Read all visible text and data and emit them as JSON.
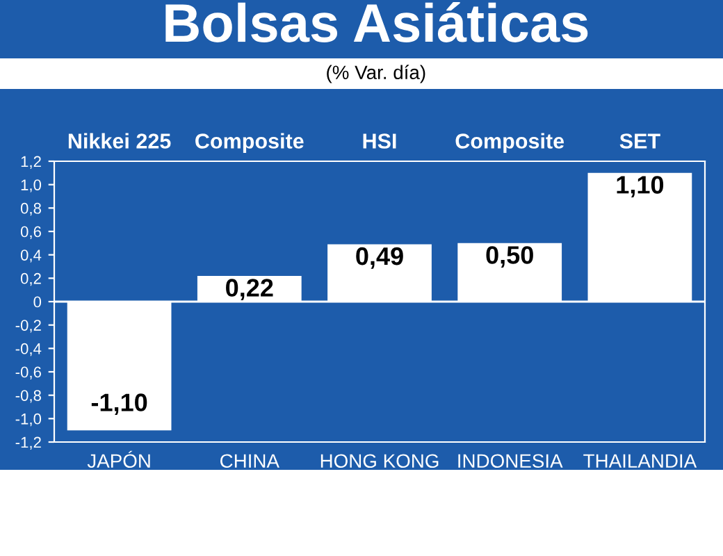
{
  "chart_data": {
    "type": "bar",
    "title": "Bolsas Asiáticas",
    "subtitle": "(% Var. día)",
    "categories": [
      "JAPÓN",
      "CHINA",
      "HONG KONG",
      "INDONESIA",
      "THAILANDIA"
    ],
    "values": [
      -1.1,
      0.22,
      0.49,
      0.5,
      1.1
    ],
    "value_labels": [
      "-1,10",
      "0,22",
      "0,49",
      "0,50",
      "1,10"
    ],
    "color": "#ffffff",
    "annotations": [
      "Nikkei 225",
      "Composite",
      "HSI",
      "Composite",
      "SET"
    ],
    "ref_lines": [
      {
        "axis": "y",
        "value": 0,
        "color": "#ffffff"
      }
    ],
    "ylim": [
      -1.2,
      1.2
    ],
    "yticks": [
      {
        "value": -1.2,
        "label": "-1,2"
      },
      {
        "value": -1.0,
        "label": "-1,0"
      },
      {
        "value": -0.8,
        "label": "-0,8"
      },
      {
        "value": -0.6,
        "label": "-0,6"
      },
      {
        "value": -0.4,
        "label": "-0,4"
      },
      {
        "value": -0.2,
        "label": "-0,2"
      },
      0,
      {
        "value": 0.2,
        "label": "0,2"
      },
      {
        "value": 0.4,
        "label": "0,4"
      },
      {
        "value": 0.6,
        "label": "0,6"
      },
      {
        "value": 0.8,
        "label": "0,8"
      },
      {
        "value": 1.0,
        "label": "1,0"
      },
      {
        "value": 1.2,
        "label": "1,2"
      }
    ],
    "legend": false
  }
}
